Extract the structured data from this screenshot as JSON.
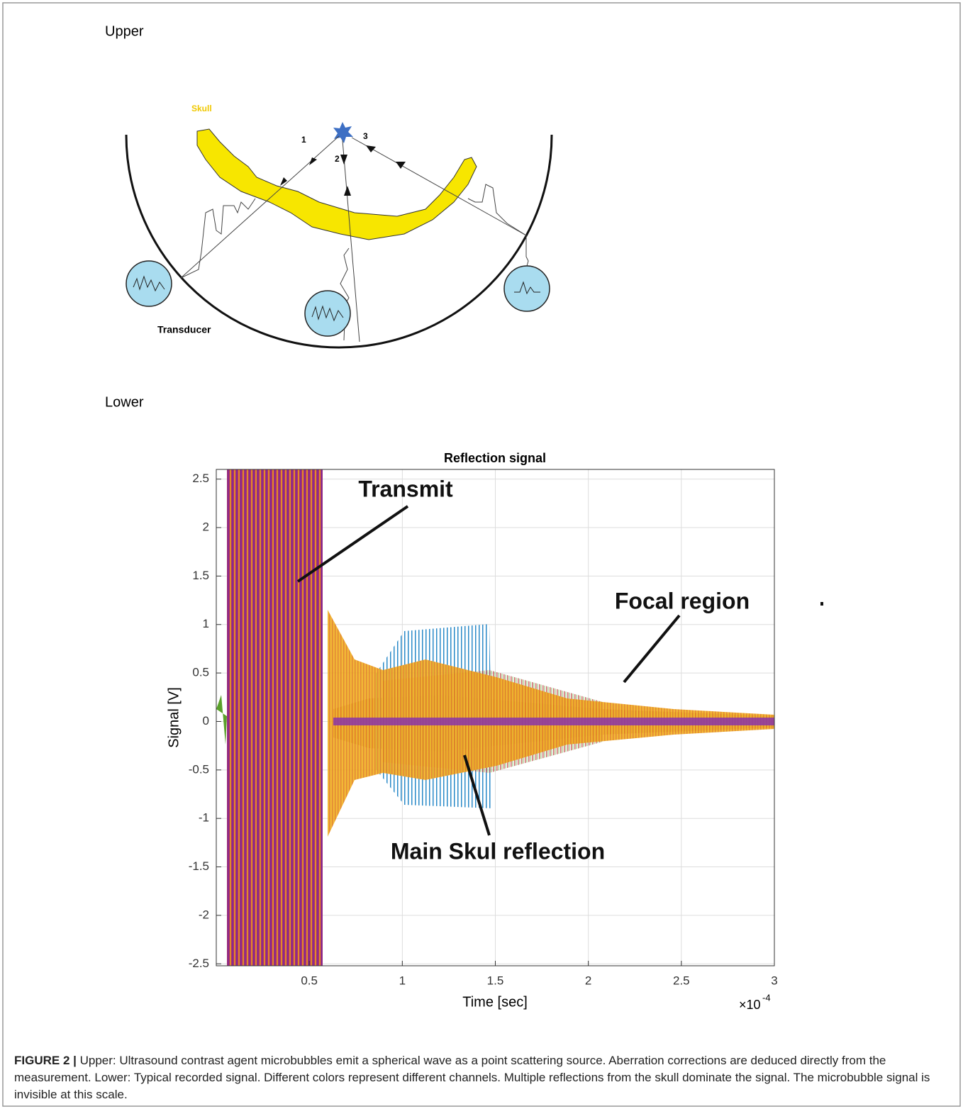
{
  "figure": {
    "upper_label": "Upper",
    "lower_label": "Lower"
  },
  "diagram": {
    "skull_label": "Skull",
    "path_labels": [
      "1",
      "2",
      "3"
    ],
    "transducer_label": "Transducer"
  },
  "chart_data": {
    "type": "line",
    "title": "Reflection signal",
    "x_label": "Time [sec]",
    "y_label": "Signal [V]",
    "x_multiplier": "×10",
    "x_exponent": "-4",
    "xlim": [
      0,
      3
    ],
    "xticks": [
      0.5,
      1,
      1.5,
      2,
      2.5,
      3
    ],
    "ylim": [
      -2.52,
      2.6
    ],
    "yticks": [
      -2.5,
      -2,
      -1.5,
      -1,
      -0.5,
      0,
      0.5,
      1,
      1.5,
      2,
      2.5
    ],
    "grid": true,
    "annotations": [
      "Transmit",
      "Focal region",
      "Main Skul reflection"
    ]
  },
  "caption": {
    "label": "FIGURE 2 |",
    "text": "Upper: Ultrasound contrast agent microbubbles emit a spherical wave as a point scattering source. Aberration corrections are deduced directly from the measurement. Lower: Typical recorded signal. Different colors represent different channels. Multiple reflections from the skull dominate the signal. The microbubble signal is invisible at this scale."
  }
}
